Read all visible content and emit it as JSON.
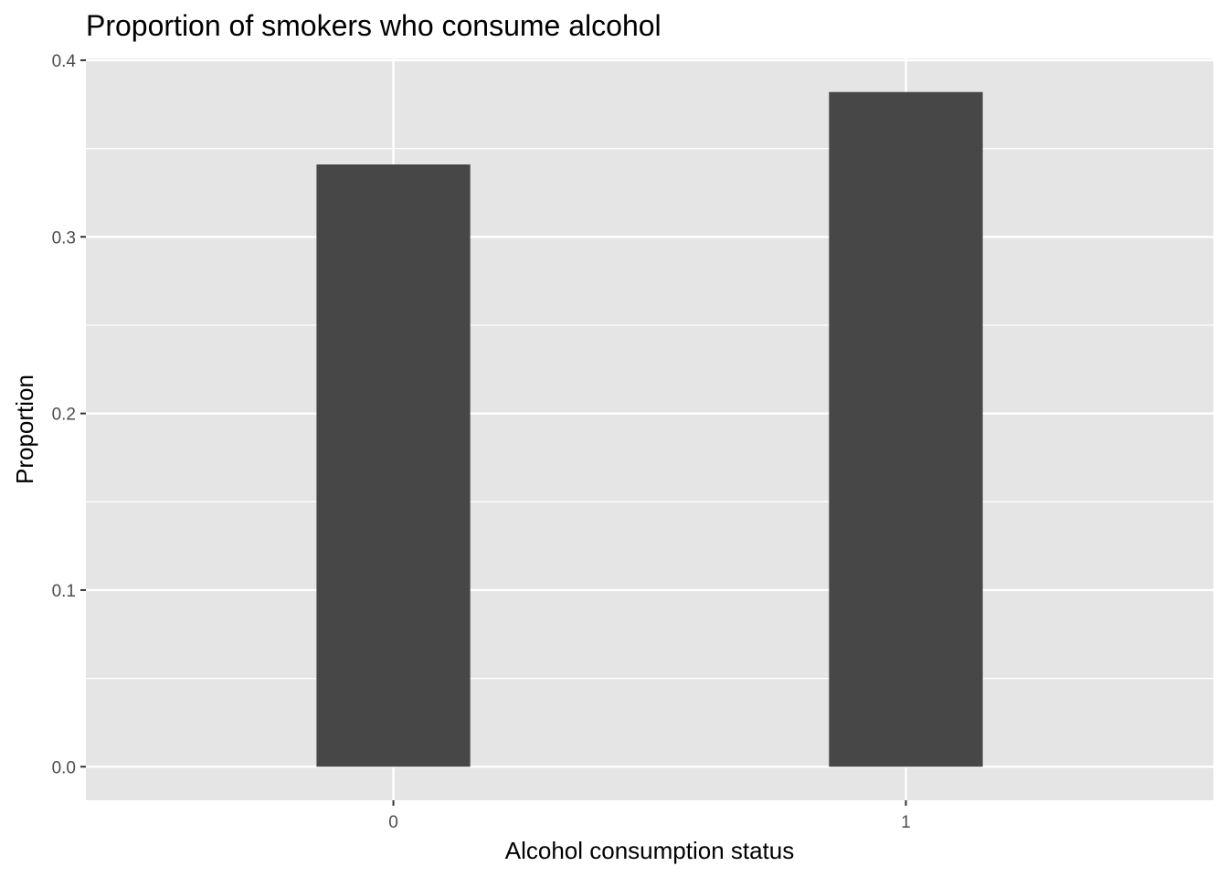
{
  "chart_data": {
    "type": "bar",
    "title": "Proportion of smokers who consume alcohol",
    "xlabel": "Alcohol consumption status",
    "ylabel": "Proportion",
    "categories": [
      "0",
      "1"
    ],
    "values": [
      0.341,
      0.382
    ],
    "ylim": [
      -0.019,
      0.401
    ],
    "yticks": [
      0.0,
      0.1,
      0.2,
      0.3,
      0.4
    ],
    "ytick_labels": [
      "0.0",
      "0.1",
      "0.2",
      "0.3",
      "0.4"
    ],
    "grid": true,
    "legend": "none",
    "colors": {
      "bar": "#474747",
      "panel_background": "#e5e5e5",
      "grid": "#ffffff",
      "tick": "#333333"
    }
  }
}
